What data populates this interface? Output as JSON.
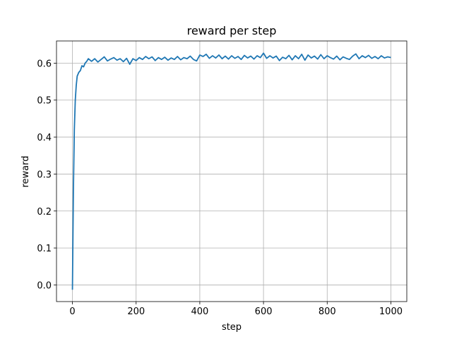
{
  "chart_data": {
    "type": "line",
    "title": "reward per step",
    "x_label": "step",
    "y_label": "reward",
    "x": [
      0,
      3,
      6,
      9,
      12,
      15,
      20,
      25,
      30,
      35,
      40,
      45,
      50,
      60,
      70,
      80,
      90,
      100,
      110,
      120,
      130,
      140,
      150,
      160,
      170,
      180,
      190,
      200,
      210,
      220,
      230,
      240,
      250,
      260,
      270,
      280,
      290,
      300,
      310,
      320,
      330,
      340,
      350,
      360,
      370,
      380,
      390,
      400,
      410,
      420,
      430,
      440,
      450,
      460,
      470,
      480,
      490,
      500,
      510,
      520,
      530,
      540,
      550,
      560,
      570,
      580,
      590,
      600,
      610,
      620,
      630,
      640,
      650,
      660,
      670,
      680,
      690,
      700,
      710,
      720,
      730,
      740,
      750,
      760,
      770,
      780,
      790,
      800,
      810,
      820,
      830,
      840,
      850,
      860,
      870,
      880,
      890,
      900,
      910,
      920,
      930,
      940,
      950,
      960,
      970,
      980,
      990,
      1000
    ],
    "values": [
      -0.013,
      0.25,
      0.42,
      0.5,
      0.54,
      0.565,
      0.575,
      0.58,
      0.593,
      0.59,
      0.6,
      0.605,
      0.612,
      0.605,
      0.612,
      0.603,
      0.61,
      0.617,
      0.606,
      0.611,
      0.615,
      0.608,
      0.612,
      0.604,
      0.613,
      0.597,
      0.612,
      0.607,
      0.615,
      0.61,
      0.618,
      0.612,
      0.617,
      0.607,
      0.615,
      0.61,
      0.616,
      0.608,
      0.614,
      0.61,
      0.618,
      0.609,
      0.615,
      0.612,
      0.619,
      0.61,
      0.606,
      0.622,
      0.618,
      0.624,
      0.613,
      0.62,
      0.614,
      0.622,
      0.612,
      0.619,
      0.611,
      0.62,
      0.613,
      0.618,
      0.61,
      0.621,
      0.614,
      0.619,
      0.611,
      0.62,
      0.615,
      0.627,
      0.613,
      0.62,
      0.614,
      0.619,
      0.607,
      0.616,
      0.612,
      0.621,
      0.609,
      0.62,
      0.612,
      0.624,
      0.608,
      0.622,
      0.614,
      0.619,
      0.611,
      0.623,
      0.612,
      0.62,
      0.615,
      0.611,
      0.619,
      0.609,
      0.617,
      0.613,
      0.61,
      0.619,
      0.625,
      0.612,
      0.62,
      0.615,
      0.621,
      0.613,
      0.618,
      0.612,
      0.62,
      0.614,
      0.617,
      0.615
    ],
    "color": "#1f77b4",
    "xlim": [
      -50,
      1050
    ],
    "xticks": [
      0,
      200,
      400,
      600,
      800,
      1000
    ],
    "ylim": [
      -0.045,
      0.66
    ],
    "yticks": [
      {
        "value": 0,
        "label": "0.0"
      },
      0.1,
      0.2,
      0.3,
      0.4,
      0.5,
      0.6
    ],
    "grid": true
  }
}
